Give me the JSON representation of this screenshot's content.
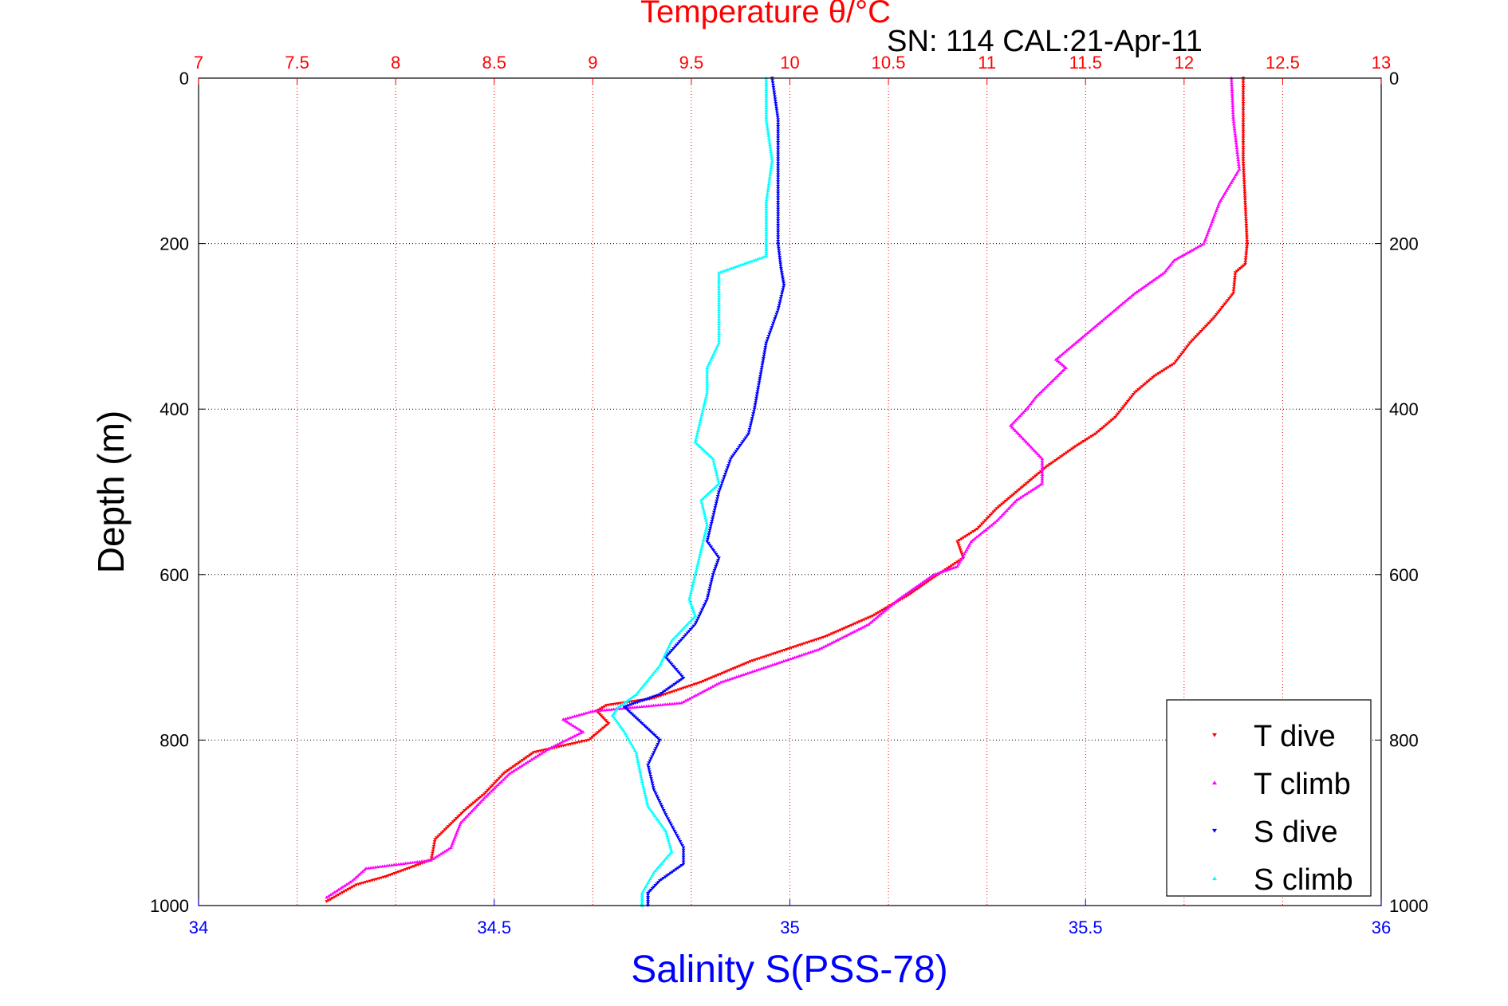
{
  "chart_data": {
    "type": "scatter",
    "title": "Temperature θ/°C",
    "subtitle": "SN: 114  CAL:21-Apr-11",
    "xlabel": "Salinity S(PSS-78)",
    "ylabel": "Depth (m)",
    "x_top": {
      "lim": [
        7,
        13
      ],
      "ticks": [
        "7",
        "7.5",
        "8",
        "8.5",
        "9",
        "9.5",
        "10",
        "10.5",
        "11",
        "11.5",
        "12",
        "12.5",
        "13"
      ]
    },
    "x_bottom": {
      "lim": [
        34,
        36
      ],
      "ticks": [
        "34",
        "34.5",
        "35",
        "35.5",
        "36"
      ]
    },
    "y": {
      "lim": [
        0,
        1000
      ],
      "reversed": true,
      "ticks": [
        "0",
        "200",
        "400",
        "600",
        "800",
        "1000"
      ]
    },
    "grid": true,
    "legend_position": "bottom-right",
    "series": [
      {
        "name": "T dive",
        "axis": "temperature",
        "color": "#ff0000",
        "marker": "triangle-down",
        "points": [
          [
            12.3,
            0
          ],
          [
            12.3,
            50
          ],
          [
            12.3,
            100
          ],
          [
            12.31,
            150
          ],
          [
            12.32,
            200
          ],
          [
            12.31,
            225
          ],
          [
            12.26,
            235
          ],
          [
            12.25,
            260
          ],
          [
            12.15,
            290
          ],
          [
            12.03,
            320
          ],
          [
            11.95,
            345
          ],
          [
            11.85,
            360
          ],
          [
            11.75,
            380
          ],
          [
            11.65,
            410
          ],
          [
            11.55,
            430
          ],
          [
            11.45,
            445
          ],
          [
            11.3,
            470
          ],
          [
            11.2,
            490
          ],
          [
            11.05,
            520
          ],
          [
            10.95,
            545
          ],
          [
            10.85,
            560
          ],
          [
            10.88,
            580
          ],
          [
            10.72,
            605
          ],
          [
            10.6,
            625
          ],
          [
            10.42,
            650
          ],
          [
            10.18,
            675
          ],
          [
            9.8,
            705
          ],
          [
            9.55,
            730
          ],
          [
            9.3,
            750
          ],
          [
            9.07,
            758
          ],
          [
            9.02,
            765
          ],
          [
            9.08,
            780
          ],
          [
            8.98,
            800
          ],
          [
            8.7,
            815
          ],
          [
            8.55,
            840
          ],
          [
            8.45,
            865
          ],
          [
            8.35,
            885
          ],
          [
            8.2,
            920
          ],
          [
            8.18,
            945
          ],
          [
            7.95,
            965
          ],
          [
            7.8,
            975
          ],
          [
            7.65,
            995
          ]
        ]
      },
      {
        "name": "T climb",
        "axis": "temperature",
        "color": "#ff00ff",
        "marker": "triangle-up",
        "points": [
          [
            12.24,
            0
          ],
          [
            12.25,
            50
          ],
          [
            12.28,
            110
          ],
          [
            12.18,
            150
          ],
          [
            12.1,
            200
          ],
          [
            11.95,
            220
          ],
          [
            11.9,
            235
          ],
          [
            11.75,
            260
          ],
          [
            11.6,
            290
          ],
          [
            11.45,
            320
          ],
          [
            11.35,
            340
          ],
          [
            11.4,
            350
          ],
          [
            11.25,
            385
          ],
          [
            11.2,
            400
          ],
          [
            11.12,
            420
          ],
          [
            11.2,
            440
          ],
          [
            11.28,
            460
          ],
          [
            11.28,
            490
          ],
          [
            11.15,
            510
          ],
          [
            11.05,
            535
          ],
          [
            10.92,
            560
          ],
          [
            10.85,
            590
          ],
          [
            10.73,
            600
          ],
          [
            10.55,
            630
          ],
          [
            10.4,
            660
          ],
          [
            10.15,
            690
          ],
          [
            9.9,
            710
          ],
          [
            9.65,
            730
          ],
          [
            9.45,
            755
          ],
          [
            9.0,
            765
          ],
          [
            8.85,
            775
          ],
          [
            8.95,
            790
          ],
          [
            8.78,
            810
          ],
          [
            8.58,
            840
          ],
          [
            8.45,
            870
          ],
          [
            8.33,
            900
          ],
          [
            8.28,
            930
          ],
          [
            8.18,
            945
          ],
          [
            7.85,
            955
          ],
          [
            7.78,
            970
          ],
          [
            7.65,
            990
          ]
        ]
      },
      {
        "name": "S dive",
        "axis": "salinity",
        "color": "#0000ff",
        "marker": "triangle-down",
        "points": [
          [
            34.97,
            0
          ],
          [
            34.98,
            50
          ],
          [
            34.98,
            100
          ],
          [
            34.98,
            150
          ],
          [
            34.98,
            200
          ],
          [
            34.985,
            230
          ],
          [
            34.99,
            250
          ],
          [
            34.98,
            280
          ],
          [
            34.96,
            320
          ],
          [
            34.95,
            360
          ],
          [
            34.94,
            400
          ],
          [
            34.93,
            430
          ],
          [
            34.9,
            460
          ],
          [
            34.88,
            500
          ],
          [
            34.87,
            530
          ],
          [
            34.86,
            560
          ],
          [
            34.88,
            580
          ],
          [
            34.87,
            600
          ],
          [
            34.86,
            630
          ],
          [
            34.84,
            660
          ],
          [
            34.79,
            700
          ],
          [
            34.82,
            725
          ],
          [
            34.78,
            745
          ],
          [
            34.72,
            760
          ],
          [
            34.75,
            780
          ],
          [
            34.78,
            800
          ],
          [
            34.76,
            830
          ],
          [
            34.77,
            860
          ],
          [
            34.79,
            890
          ],
          [
            34.82,
            930
          ],
          [
            34.82,
            950
          ],
          [
            34.78,
            970
          ],
          [
            34.76,
            985
          ],
          [
            34.76,
            1000
          ]
        ]
      },
      {
        "name": "S climb",
        "axis": "salinity",
        "color": "#00ffff",
        "marker": "triangle-up",
        "points": [
          [
            34.96,
            0
          ],
          [
            34.96,
            50
          ],
          [
            34.97,
            100
          ],
          [
            34.96,
            150
          ],
          [
            34.96,
            200
          ],
          [
            34.96,
            215
          ],
          [
            34.92,
            225
          ],
          [
            34.88,
            235
          ],
          [
            34.88,
            280
          ],
          [
            34.88,
            320
          ],
          [
            34.86,
            350
          ],
          [
            34.86,
            380
          ],
          [
            34.85,
            410
          ],
          [
            34.84,
            440
          ],
          [
            34.87,
            460
          ],
          [
            34.88,
            490
          ],
          [
            34.85,
            510
          ],
          [
            34.86,
            540
          ],
          [
            34.85,
            570
          ],
          [
            34.84,
            600
          ],
          [
            34.83,
            630
          ],
          [
            34.84,
            650
          ],
          [
            34.8,
            680
          ],
          [
            34.78,
            710
          ],
          [
            34.74,
            745
          ],
          [
            34.71,
            760
          ],
          [
            34.7,
            770
          ],
          [
            34.72,
            790
          ],
          [
            34.74,
            815
          ],
          [
            34.75,
            850
          ],
          [
            34.76,
            880
          ],
          [
            34.79,
            910
          ],
          [
            34.8,
            935
          ],
          [
            34.77,
            960
          ],
          [
            34.75,
            985
          ],
          [
            34.75,
            1000
          ]
        ]
      }
    ]
  }
}
